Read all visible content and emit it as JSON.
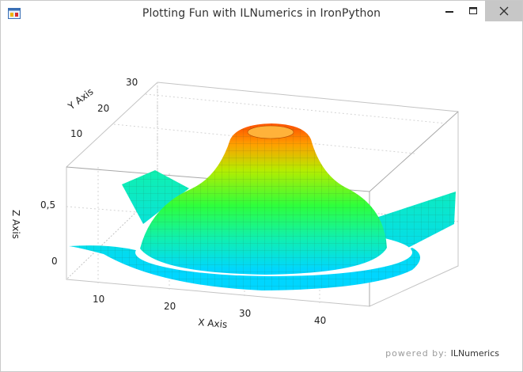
{
  "window": {
    "title": "Plotting Fun with ILNumerics in IronPython",
    "icon": "winforms-app-icon",
    "controls": [
      "minimize-icon",
      "maximize-icon",
      "close-icon"
    ],
    "close_button_color": "#c7c7c7"
  },
  "plot": {
    "type": "surface-3d",
    "colormap": [
      "#00d6ff",
      "#27ff7f",
      "#a8e600",
      "#ff9a00",
      "#ff5a00"
    ],
    "x_axis": {
      "label": "X Axis",
      "ticks": [
        "10",
        "20",
        "30",
        "40"
      ]
    },
    "y_axis": {
      "label": "Y Axis",
      "ticks": [
        "10",
        "20",
        "30"
      ]
    },
    "z_axis": {
      "label": "Z Axis",
      "ticks": [
        "0",
        "0,5"
      ]
    },
    "grid": true,
    "surface": "sinc-like ring surface, peak ring near z=1 at center"
  },
  "branding": {
    "prefix": "powered by:",
    "name": "ILNumerics"
  }
}
